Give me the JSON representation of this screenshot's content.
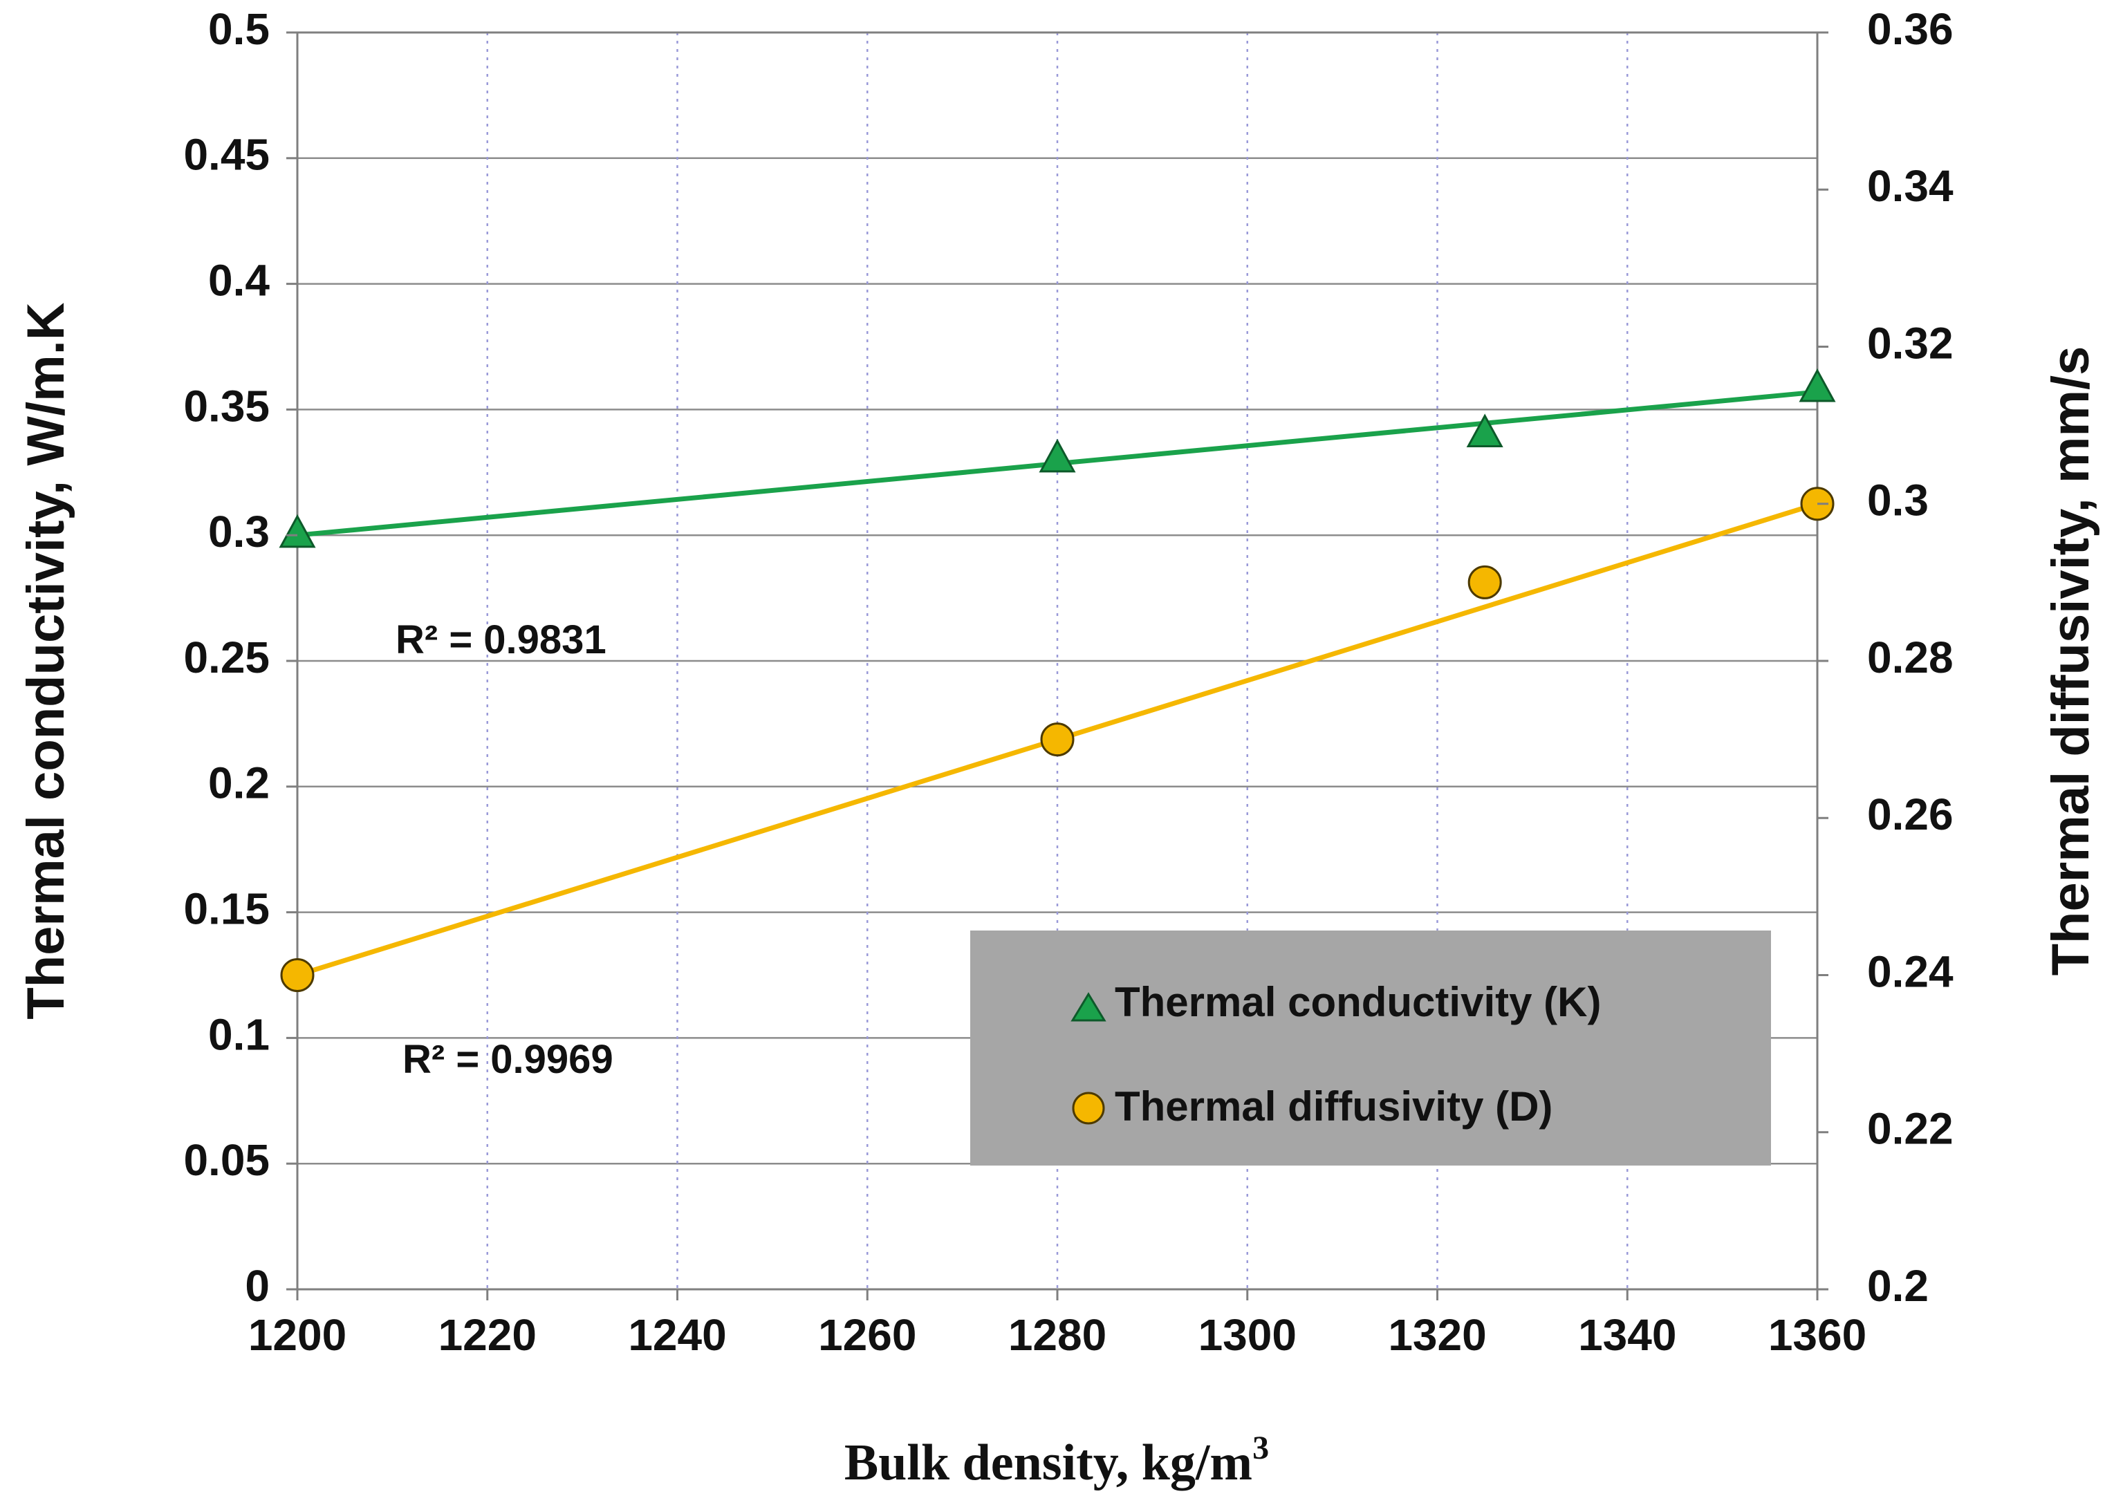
{
  "chart_data": {
    "type": "scatter",
    "title": "",
    "xlabel": "Bulk density, kg/m³",
    "xlabel_main": "Bulk density, kg/m",
    "xlabel_sup": "3",
    "ylabel_left": "Thermal conductivity, W/m.K",
    "ylabel_right": "Thermal diffusivity, mm/s",
    "xlim": [
      1200,
      1360
    ],
    "ylim_left": [
      0,
      0.5
    ],
    "ylim_right": [
      0.2,
      0.36
    ],
    "x_ticks": [
      "1200",
      "1220",
      "1240",
      "1260",
      "1280",
      "1300",
      "1320",
      "1340",
      "1360"
    ],
    "y_left_ticks": [
      "0",
      "0.05",
      "0.1",
      "0.15",
      "0.2",
      "0.25",
      "0.3",
      "0.35",
      "0.4",
      "0.45",
      "0.5"
    ],
    "y_right_ticks": [
      "0.2",
      "0.22",
      "0.24",
      "0.26",
      "0.28",
      "0.3",
      "0.32",
      "0.34",
      "0.36"
    ],
    "series": [
      {
        "name": "Thermal conductivity (K)",
        "axis": "left",
        "marker": "triangle",
        "color": "#1aa24b",
        "x": [
          1200,
          1280,
          1325,
          1360
        ],
        "y": [
          0.3,
          0.33,
          0.34,
          0.358
        ],
        "trendline": {
          "x": [
            1200,
            1360
          ],
          "y": [
            0.3,
            0.357
          ]
        },
        "r_squared": "R² = 0.9831"
      },
      {
        "name": "Thermal diffusivity (D)",
        "axis": "right",
        "marker": "circle",
        "color": "#f5b700",
        "x": [
          1200,
          1280,
          1325,
          1360
        ],
        "y": [
          0.24,
          0.27,
          0.29,
          0.3
        ],
        "trendline": {
          "x": [
            1200,
            1360
          ],
          "y": [
            0.24,
            0.3
          ]
        },
        "r_squared": "R² = 0.9969"
      }
    ],
    "grid": {
      "horizontal": true,
      "vertical": "dotted"
    },
    "legend": {
      "position": "bottom-right",
      "background": "#a6a6a6"
    }
  }
}
